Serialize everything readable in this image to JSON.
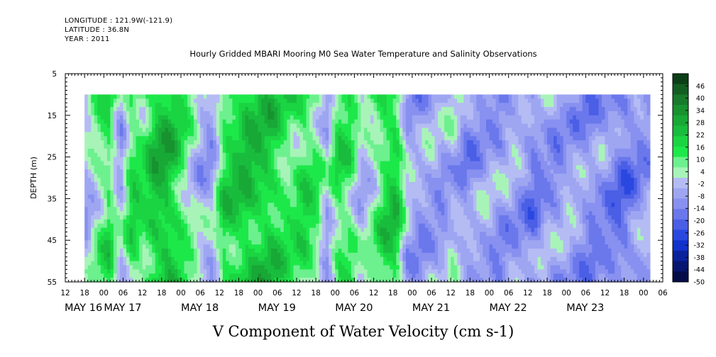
{
  "meta": {
    "longitude": "LONGITUDE : 121.9W(-121.9)",
    "latitude": "LATITUDE : 36.8N",
    "year": "YEAR : 2011"
  },
  "chart_data": {
    "type": "heatmap",
    "title": "Hourly Gridded MBARI Mooring M0 Sea Water Temperature and Salinity Observations",
    "xlabel": "V Component of Water Velocity (cm s-1)",
    "ylabel": "DEPTH (m)",
    "y_ticks": [
      "5",
      "15",
      "25",
      "35",
      "45",
      "55"
    ],
    "y_tick_values": [
      5,
      15,
      25,
      35,
      45,
      55
    ],
    "ylim": [
      5,
      55
    ],
    "y_inverted": true,
    "data_depth_range": [
      10,
      55
    ],
    "x_hours_start": "12",
    "x_hour_ticks": [
      "12",
      "18",
      "00",
      "06",
      "12",
      "18",
      "00",
      "06",
      "12",
      "18",
      "00",
      "06",
      "12",
      "18",
      "00",
      "06",
      "12",
      "18",
      "00",
      "06",
      "12",
      "18",
      "00",
      "06",
      "12",
      "18",
      "00",
      "06",
      "12",
      "18",
      "00",
      "06"
    ],
    "x_days": [
      "MAY 16",
      "MAY 17",
      "MAY 18",
      "MAY 19",
      "MAY 20",
      "MAY 21",
      "MAY 22",
      "MAY 23"
    ],
    "data_time_range_hours_from_may16_00": [
      18,
      194
    ],
    "colorbar_labels": [
      "46",
      "40",
      "34",
      "28",
      "22",
      "16",
      "10",
      "4",
      "-2",
      "-8",
      "-14",
      "-20",
      "-26",
      "-32",
      "-38",
      "-44",
      "-50"
    ],
    "colorbar_range": [
      -50,
      52
    ],
    "colorbar_colors": [
      "#0c3f17",
      "#145e22",
      "#187a2a",
      "#17922f",
      "#18a836",
      "#19bc3c",
      "#1bd442",
      "#1de84a",
      "#6df08e",
      "#a8f4b8",
      "#b5bcf4",
      "#9ea6f2",
      "#8890f0",
      "#6a78ec",
      "#4a5ee6",
      "#2a48e0",
      "#1232cc",
      "#0b229c",
      "#071670",
      "#050c48"
    ],
    "column_profile": {
      "description_values_cm_s": [
        -4,
        6,
        14,
        -6,
        16,
        12,
        22,
        24,
        16,
        6,
        -4,
        -6,
        16,
        18,
        22,
        20,
        20,
        14,
        10,
        16,
        10,
        -4,
        14,
        12,
        -2,
        4,
        16,
        20,
        -4,
        -8,
        -6,
        -8,
        -2,
        -10,
        -8,
        -6,
        -10,
        -6,
        -8,
        -14,
        -8,
        -10,
        -6,
        -8,
        -12,
        -10,
        -14,
        -16,
        -10,
        -8
      ]
    }
  }
}
